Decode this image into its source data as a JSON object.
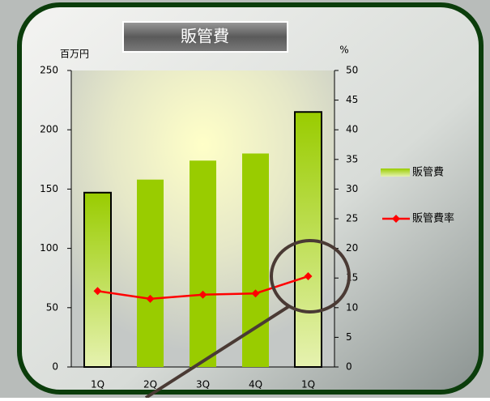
{
  "chart_data": {
    "type": "bar",
    "title": "販管費",
    "y_label": "百万円",
    "y2_label": "%",
    "categories": [
      "1Q",
      "2Q",
      "3Q",
      "4Q",
      "1Q"
    ],
    "series": [
      {
        "name": "販管費",
        "type": "bar",
        "color": "#99cc00",
        "values": [
          147,
          158,
          174,
          180,
          215
        ]
      },
      {
        "name": "販管費率",
        "type": "line",
        "axis": "y2",
        "color": "#ff0000",
        "values": [
          12.8,
          11.5,
          12.2,
          12.4,
          15.3
        ]
      }
    ],
    "ylim": [
      0,
      250
    ],
    "yticks": [
      0,
      50,
      100,
      150,
      200,
      250
    ],
    "y2lim": [
      0,
      50
    ],
    "y2ticks": [
      0,
      5,
      10,
      15,
      20,
      25,
      30,
      35,
      40,
      45,
      50
    ],
    "legend": "right"
  }
}
